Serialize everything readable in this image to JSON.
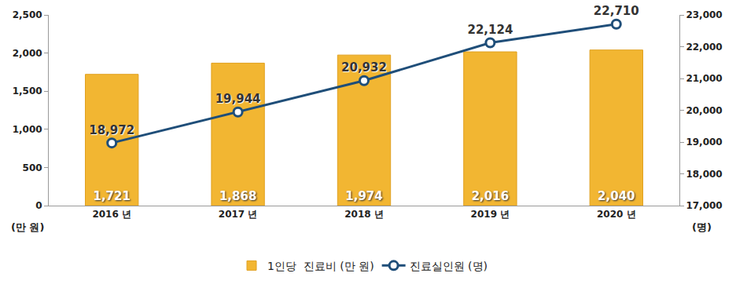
{
  "chart_data": {
    "type": "bar",
    "categories": [
      "2016 년",
      "2017 년",
      "2018 년",
      "2019 년",
      "2020 년"
    ],
    "series": [
      {
        "name": "1인당  진료비 (만 원)",
        "type": "bar",
        "color": "#F2B632",
        "values": [
          1721,
          1868,
          1974,
          2016,
          2040
        ],
        "value_labels": [
          "1,721",
          "1,868",
          "1,974",
          "2,016",
          "2,040"
        ]
      },
      {
        "name": "진료실인원 (명)",
        "type": "line",
        "axis": "y2",
        "color": "#1F4E79",
        "marker": "circle",
        "values": [
          18972,
          19944,
          20932,
          22124,
          22710
        ],
        "value_labels": [
          "18,972",
          "19,944",
          "20,932",
          "22,124",
          "22,710"
        ]
      }
    ],
    "ylim": [
      0,
      2500
    ],
    "yticks": [
      0,
      500,
      {
        "value": 1000,
        "label": "1,000"
      },
      {
        "value": 1500,
        "label": "1,500"
      },
      {
        "value": 2000,
        "label": "2,000"
      },
      {
        "value": 2500,
        "label": "2,500"
      }
    ],
    "y2lim": [
      17000,
      23000
    ],
    "y2ticks": [
      {
        "value": 17000,
        "label": "17,000"
      },
      {
        "value": 18000,
        "label": "18,000"
      },
      {
        "value": 19000,
        "label": "19,000"
      },
      {
        "value": 20000,
        "label": "20,000"
      },
      {
        "value": 21000,
        "label": "21,000"
      },
      {
        "value": 22000,
        "label": "22,000"
      },
      {
        "value": 23000,
        "label": "23,000"
      }
    ],
    "ylabel": "(만 원)",
    "y2label": "(명)",
    "data_labels": true,
    "legend": "bottom",
    "grid": false
  }
}
